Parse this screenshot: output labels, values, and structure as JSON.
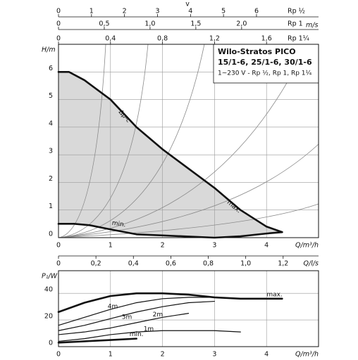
{
  "chart_data": [
    {
      "type": "line",
      "title": [
        "Wilo-Stratos PICO",
        "15/1-6, 25/1-6, 30/1-6"
      ],
      "subtitle": "1~230 V - Rp ½, Rp 1, Rp 1¼",
      "x_label": "Q/m³/h",
      "y_label": "H/m",
      "xlim": [
        0,
        5
      ],
      "ylim": [
        0,
        7
      ],
      "xticks": [
        0,
        1,
        2,
        3,
        4
      ],
      "yticks": [
        0,
        1,
        2,
        3,
        4,
        5,
        6
      ],
      "grid": true,
      "area_color": "#d9d9d9",
      "annotations": [
        "Δp-c"
      ],
      "series": [
        {
          "name": "max.",
          "color": "#111111",
          "x": [
            0,
            0.2,
            0.5,
            1,
            1.5,
            2,
            2.5,
            3,
            3.5,
            4,
            4.3
          ],
          "values": [
            6,
            6,
            5.7,
            5.0,
            4.0,
            3.2,
            2.5,
            1.8,
            1.0,
            0.4,
            0.2
          ]
        },
        {
          "name": "min.",
          "color": "#111111",
          "x": [
            0,
            0.3,
            0.6,
            1,
            1.5,
            2,
            2.5,
            3,
            3.5,
            4,
            4.3
          ],
          "values": [
            0.5,
            0.5,
            0.45,
            0.3,
            0.12,
            0.08,
            0.04,
            0,
            0.05,
            0.15,
            0.2
          ]
        }
      ],
      "top_axis_title": "v",
      "top_axis_unit": "m/s",
      "top_axes": [
        {
          "label": "Rp ½",
          "xlim": [
            0,
            7.88
          ],
          "xticks": [
            0,
            1,
            2,
            3,
            4,
            5,
            6
          ]
        },
        {
          "label": "Rp 1",
          "xlim": [
            0,
            2.84
          ],
          "xticks": [
            0,
            {
              "value": 0.5,
              "label": "0,5"
            },
            {
              "value": 1,
              "label": "1,0"
            },
            {
              "value": 1.5,
              "label": "1,5"
            },
            {
              "value": 2,
              "label": "2,0"
            }
          ]
        },
        {
          "label": "Rp 1¼",
          "xlim": [
            0,
            2
          ],
          "xticks": [
            0,
            {
              "value": 0.4,
              "label": "0,4"
            },
            {
              "value": 0.8,
              "label": "0,8"
            },
            {
              "value": 1.2,
              "label": "1,2"
            },
            {
              "value": 1.6,
              "label": "1,6"
            }
          ]
        }
      ],
      "bottom_axis": {
        "label": "Q/l/s",
        "xlim": [
          0,
          1.389
        ],
        "xticks": [
          0,
          {
            "value": 0.2,
            "label": "0,2"
          },
          {
            "value": 0.4,
            "label": "0,4"
          },
          {
            "value": 0.6,
            "label": "0,6"
          },
          {
            "value": 0.8,
            "label": "0,8"
          },
          {
            "value": 1,
            "label": "1,0"
          },
          {
            "value": 1.2,
            "label": "1,2"
          }
        ]
      }
    },
    {
      "type": "line",
      "x_label": "Q/m³/h",
      "y_label": "P₁/W",
      "xlim": [
        0,
        5
      ],
      "ylim": [
        0,
        57
      ],
      "xticks": [
        0,
        1,
        2,
        3,
        4
      ],
      "yticks": [
        0,
        20,
        40
      ],
      "grid": true,
      "series": [
        {
          "name": "max.",
          "color": "#111111",
          "x": [
            0,
            0.5,
            1,
            1.5,
            2,
            2.5,
            3,
            3.5,
            4,
            4.3
          ],
          "values": [
            26,
            33,
            38,
            40,
            40,
            39,
            37,
            36,
            36,
            36
          ]
        },
        {
          "name": "4m",
          "color": "#111111",
          "x": [
            0,
            0.5,
            1,
            1.5,
            2,
            2.5,
            3
          ],
          "values": [
            16,
            22,
            28,
            33,
            36,
            37,
            37
          ]
        },
        {
          "name": "3m",
          "color": "#111111",
          "x": [
            0,
            0.5,
            1,
            1.5,
            2,
            2.5,
            3
          ],
          "values": [
            12,
            16,
            21,
            26,
            30,
            33,
            34
          ]
        },
        {
          "name": "2m",
          "color": "#111111",
          "x": [
            0,
            0.5,
            1,
            1.5,
            2,
            2.5
          ],
          "values": [
            9,
            11,
            14,
            18,
            22,
            25
          ]
        },
        {
          "name": "1m",
          "color": "#111111",
          "x": [
            0,
            0.5,
            1,
            1.5,
            2,
            2.5,
            3,
            3.5
          ],
          "values": [
            4,
            6,
            9,
            11,
            12,
            12,
            12,
            11
          ]
        },
        {
          "name": "min.",
          "color": "#111111",
          "x": [
            0,
            0.5,
            1,
            1.5
          ],
          "values": [
            3,
            4,
            5,
            6
          ]
        }
      ]
    }
  ]
}
